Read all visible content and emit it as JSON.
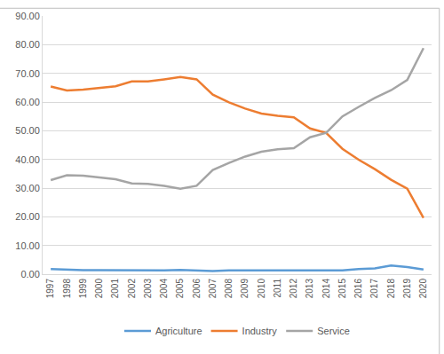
{
  "chart_data": {
    "type": "line",
    "categories": [
      "1997",
      "1998",
      "1999",
      "2000",
      "2001",
      "2002",
      "2003",
      "2004",
      "2005",
      "2006",
      "2007",
      "2008",
      "2009",
      "2010",
      "2011",
      "2012",
      "2013",
      "2014",
      "2015",
      "2016",
      "2017",
      "2018",
      "2019",
      "2020"
    ],
    "series": [
      {
        "name": "Agriculture",
        "color": "#5B9BD5",
        "values": [
          1.8,
          1.5,
          1.4,
          1.4,
          1.4,
          1.2,
          1.3,
          1.3,
          1.5,
          1.3,
          1.1,
          1.3,
          1.3,
          1.3,
          1.3,
          1.4,
          1.5,
          1.5,
          1.3,
          1.8,
          2.0,
          3.0,
          2.5,
          1.6
        ]
      },
      {
        "name": "Industry",
        "color": "#ED7D31",
        "values": [
          65.4,
          64.0,
          64.3,
          65.0,
          65.5,
          67.2,
          67.2,
          67.9,
          68.7,
          67.9,
          62.6,
          59.9,
          57.7,
          56.0,
          55.2,
          54.7,
          50.8,
          49.2,
          43.7,
          39.9,
          36.6,
          32.9,
          29.8,
          19.6
        ]
      },
      {
        "name": "Service",
        "color": "#A5A5A5",
        "values": [
          32.8,
          34.5,
          34.3,
          33.6,
          33.1,
          31.6,
          31.5,
          30.8,
          29.8,
          30.8,
          36.3,
          38.8,
          41.0,
          42.7,
          43.5,
          43.9,
          47.7,
          49.3,
          55.0,
          58.3,
          61.4,
          64.1,
          67.7,
          78.8
        ]
      }
    ],
    "ylim": [
      0,
      90
    ],
    "yticks": [
      {
        "value": 0,
        "label": "0.00"
      },
      {
        "value": 10,
        "label": "10.00"
      },
      {
        "value": 20,
        "label": "20.00"
      },
      {
        "value": 30,
        "label": "30.00"
      },
      {
        "value": 40,
        "label": "40.00"
      },
      {
        "value": 50,
        "label": "50.00"
      },
      {
        "value": 60,
        "label": "60.00"
      },
      {
        "value": 70,
        "label": "70.00"
      },
      {
        "value": 80,
        "label": "80.00"
      },
      {
        "value": 90,
        "label": "90.00"
      }
    ],
    "grid": true,
    "legend": "bottom"
  }
}
